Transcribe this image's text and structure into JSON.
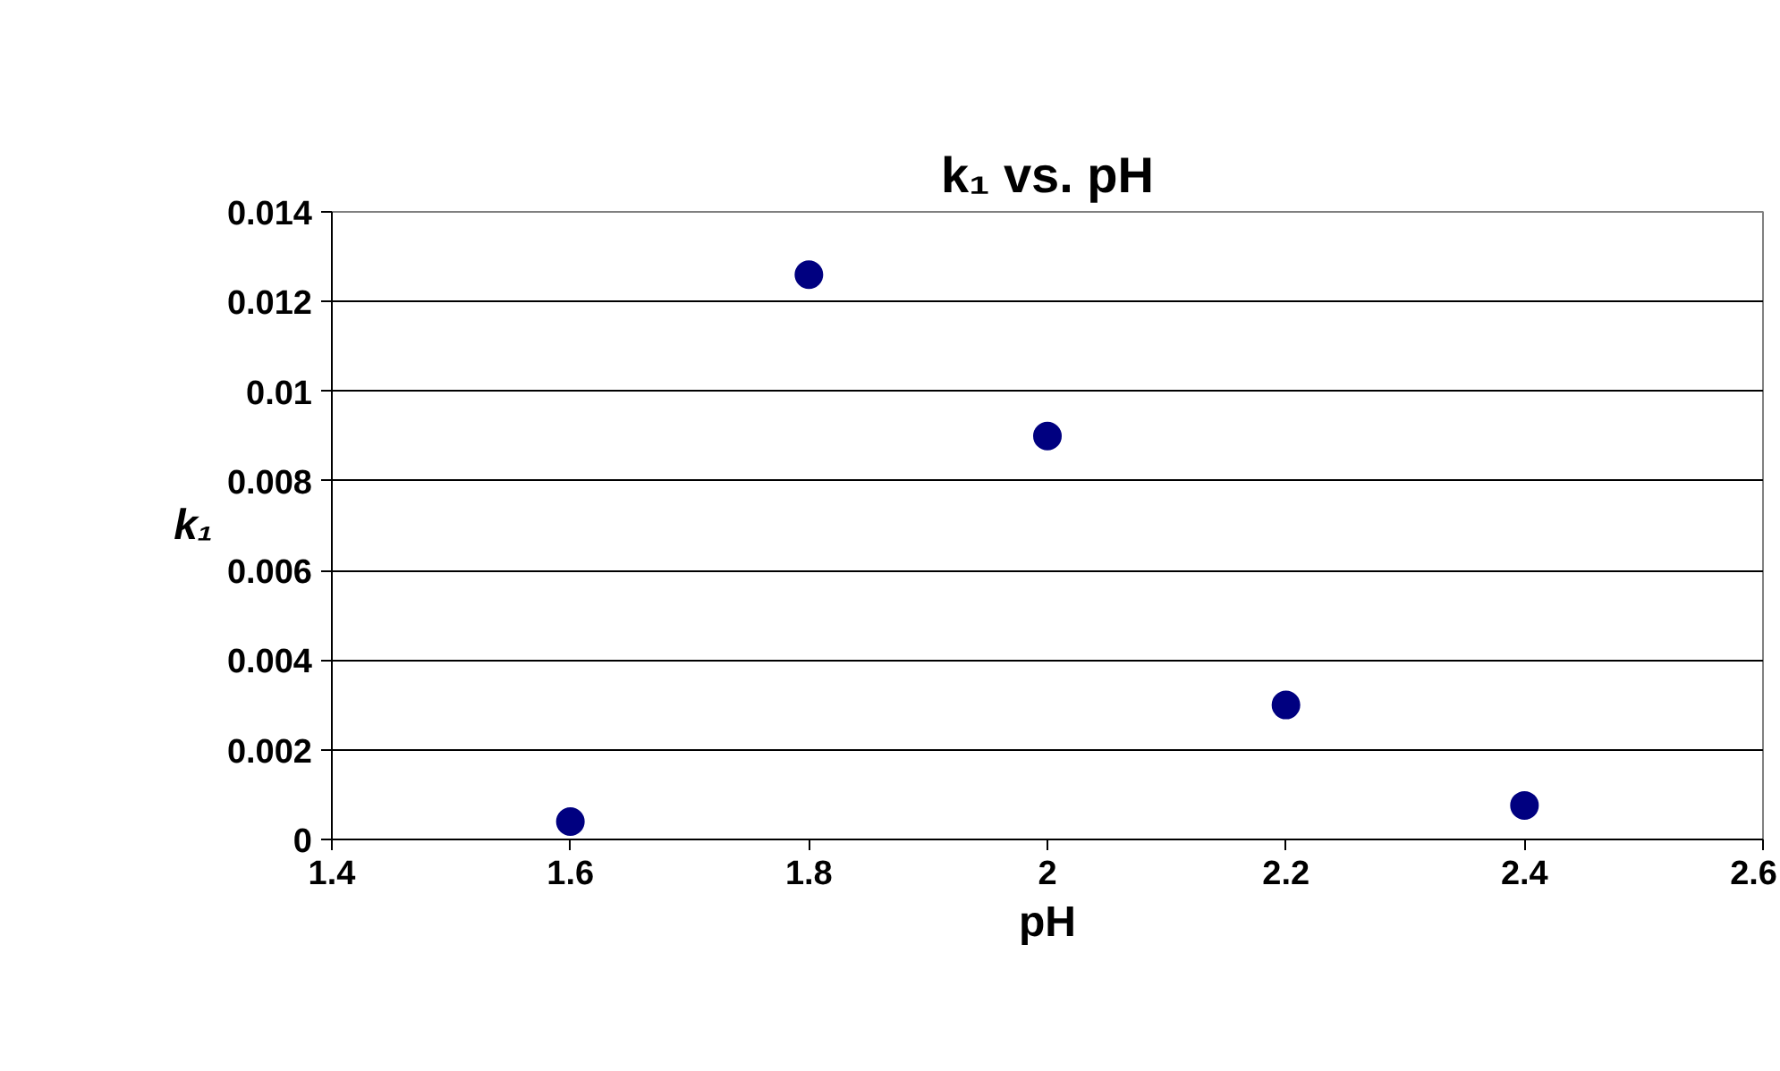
{
  "chart_data": {
    "type": "scatter",
    "title": "k₁ vs. pH",
    "xlabel": "pH",
    "ylabel": "k₁",
    "x": [
      1.6,
      1.8,
      2,
      2.2,
      2.4
    ],
    "series": [
      {
        "color": "#000080",
        "values": [
          0.0004,
          0.0126,
          0.009,
          0.003,
          0.00076
        ]
      }
    ],
    "xlim": [
      1.4,
      2.6
    ],
    "xticks": [
      1.4,
      1.6,
      1.8,
      2,
      2.2,
      2.4,
      2.6
    ],
    "ylim": [
      0,
      0.014
    ],
    "yticks": [
      0,
      0.002,
      0.004,
      0.006,
      0.008,
      0.01,
      0.012,
      0.014
    ],
    "grid": "y",
    "marker": "circle"
  }
}
